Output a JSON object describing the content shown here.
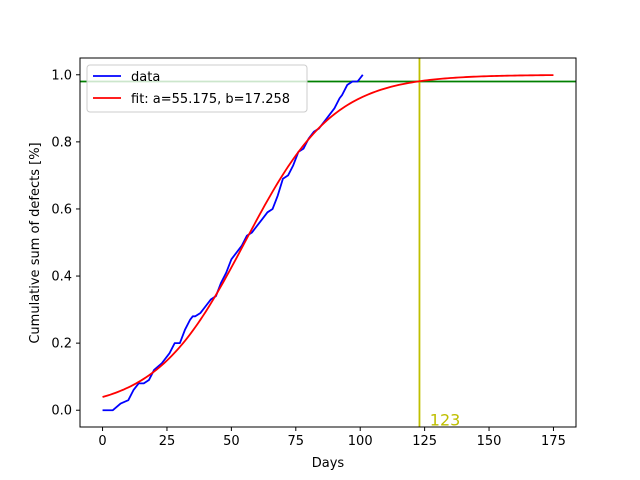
{
  "chart_data": {
    "type": "line",
    "title": "",
    "xlabel": "Days",
    "ylabel": "Cumulative sum of defects [%]",
    "xlim": [
      -8.75,
      183.75
    ],
    "ylim": [
      -0.05,
      1.05
    ],
    "xticks": [
      0,
      25,
      50,
      75,
      100,
      125,
      150,
      175
    ],
    "yticks": [
      0.0,
      0.2,
      0.4,
      0.6,
      0.8,
      1.0
    ],
    "xtick_labels": [
      "0",
      "25",
      "50",
      "75",
      "100",
      "125",
      "150",
      "175"
    ],
    "ytick_labels": [
      "0.0",
      "0.2",
      "0.4",
      "0.6",
      "0.8",
      "1.0"
    ],
    "legend_position": "top-left",
    "grid": false,
    "series": [
      {
        "name": "data",
        "color": "#0000ff",
        "x": [
          0,
          4,
          7,
          10,
          12,
          14,
          16,
          18,
          20,
          23,
          26,
          28,
          30,
          32,
          34,
          35,
          36,
          38,
          40,
          42,
          44,
          46,
          48,
          50,
          52,
          54,
          56,
          58,
          60,
          62,
          64,
          66,
          68,
          70,
          72,
          74,
          76,
          78,
          80,
          82,
          84,
          86,
          88,
          90,
          92,
          93,
          95,
          97,
          99,
          100,
          101
        ],
        "y": [
          0.0,
          0.0,
          0.02,
          0.03,
          0.06,
          0.08,
          0.08,
          0.09,
          0.12,
          0.14,
          0.17,
          0.2,
          0.2,
          0.24,
          0.27,
          0.28,
          0.28,
          0.29,
          0.31,
          0.33,
          0.34,
          0.38,
          0.41,
          0.45,
          0.47,
          0.49,
          0.52,
          0.53,
          0.55,
          0.57,
          0.59,
          0.6,
          0.64,
          0.69,
          0.7,
          0.73,
          0.77,
          0.78,
          0.81,
          0.83,
          0.84,
          0.86,
          0.88,
          0.9,
          0.93,
          0.94,
          0.97,
          0.98,
          0.98,
          0.99,
          1.0
        ]
      },
      {
        "name": "fit: a=55.175, b=17.258",
        "color": "#ff0000",
        "a": 55.175,
        "b": 17.258,
        "x_start": 0,
        "x_end": 175
      }
    ],
    "hlines": [
      {
        "y": 0.98,
        "color": "#008000"
      }
    ],
    "vlines": [
      {
        "x": 123,
        "color": "#bfbf00"
      }
    ],
    "annotations": [
      {
        "text": "123",
        "x": 127,
        "y": -0.04,
        "color": "#bfbf00"
      }
    ]
  }
}
